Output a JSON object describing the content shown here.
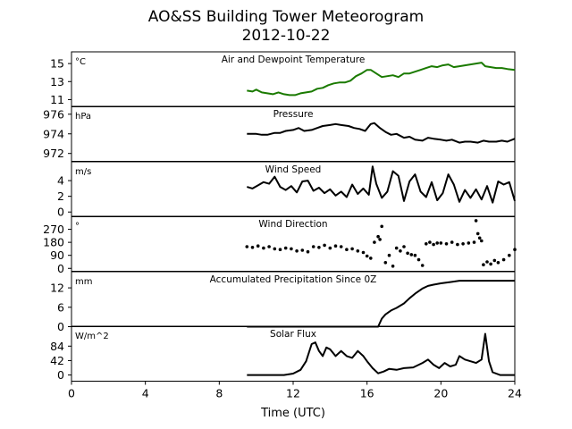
{
  "chart_data": {
    "type": "line",
    "title": "AO&SS Building Tower Meteorogram",
    "subtitle": "2012-10-22",
    "xlabel": "Time (UTC)",
    "xlim": [
      0,
      24
    ],
    "xticks": [
      "0",
      "4",
      "8",
      "12",
      "16",
      "20",
      "24"
    ],
    "grid": false,
    "panels": [
      {
        "name": "Air and Dewpoint Temperature",
        "unit": "°C",
        "ylim": [
          10.2,
          16.3
        ],
        "yticks": [
          11,
          13,
          15
        ],
        "ytick_labels": [
          "11",
          "13",
          "15"
        ],
        "color": "#1a7a00",
        "series": [
          {
            "x": [
              9.5,
              9.8,
              10.0,
              10.3,
              10.6,
              10.9,
              11.2,
              11.5,
              11.8,
              12.1,
              12.4,
              12.7,
              13.0,
              13.3,
              13.6,
              13.9,
              14.2,
              14.5,
              14.8,
              15.1,
              15.4,
              15.7,
              16.0,
              16.2,
              16.5,
              16.8,
              17.1,
              17.4,
              17.7,
              18.0,
              18.3,
              18.6,
              18.9,
              19.2,
              19.5,
              19.8,
              20.1,
              20.4,
              20.7,
              21.0,
              21.3,
              21.6,
              21.9,
              22.2,
              22.4,
              22.7,
              23.0,
              23.3,
              23.6,
              24.0
            ],
            "y": [
              12.0,
              11.9,
              12.1,
              11.8,
              11.7,
              11.6,
              11.8,
              11.6,
              11.5,
              11.5,
              11.7,
              11.8,
              11.9,
              12.2,
              12.3,
              12.6,
              12.8,
              12.9,
              12.9,
              13.1,
              13.6,
              13.9,
              14.3,
              14.3,
              13.9,
              13.5,
              13.6,
              13.7,
              13.5,
              13.9,
              13.9,
              14.1,
              14.3,
              14.5,
              14.7,
              14.6,
              14.8,
              14.9,
              14.6,
              14.7,
              14.8,
              14.9,
              15.0,
              15.1,
              14.7,
              14.6,
              14.5,
              14.5,
              14.4,
              14.3
            ]
          }
        ]
      },
      {
        "name": "Pressure",
        "unit": "hPa",
        "ylim": [
          971.2,
          976.8
        ],
        "yticks": [
          972,
          974,
          976
        ],
        "ytick_labels": [
          "972",
          "974",
          "976"
        ],
        "color": "#000000",
        "series": [
          {
            "x": [
              9.5,
              10.0,
              10.3,
              10.6,
              11.0,
              11.3,
              11.6,
              12.0,
              12.3,
              12.6,
              13.0,
              13.3,
              13.6,
              14.0,
              14.3,
              14.6,
              15.0,
              15.3,
              15.6,
              15.9,
              16.2,
              16.4,
              16.7,
              17.0,
              17.3,
              17.6,
              18.0,
              18.3,
              18.6,
              19.0,
              19.3,
              19.6,
              20.0,
              20.3,
              20.6,
              21.0,
              21.3,
              21.6,
              22.0,
              22.3,
              22.6,
              23.0,
              23.3,
              23.6,
              24.0
            ],
            "y": [
              974.0,
              974.0,
              973.9,
              973.9,
              974.1,
              974.1,
              974.3,
              974.4,
              974.6,
              974.3,
              974.4,
              974.6,
              974.8,
              974.9,
              975.0,
              974.9,
              974.8,
              974.6,
              974.5,
              974.3,
              975.0,
              975.1,
              974.6,
              974.2,
              973.9,
              974.0,
              973.6,
              973.7,
              973.4,
              973.3,
              973.6,
              973.5,
              973.4,
              973.3,
              973.4,
              973.1,
              973.2,
              973.2,
              973.1,
              973.3,
              973.2,
              973.2,
              973.3,
              973.2,
              973.5
            ]
          }
        ]
      },
      {
        "name": "Wind Speed",
        "unit": "m/s",
        "ylim": [
          -0.6,
          6.4
        ],
        "yticks": [
          0,
          2,
          4
        ],
        "ytick_labels": [
          "0",
          "2",
          "4"
        ],
        "color": "#000000",
        "series": [
          {
            "x": [
              9.5,
              9.8,
              10.1,
              10.4,
              10.7,
              11.0,
              11.3,
              11.6,
              11.9,
              12.2,
              12.5,
              12.8,
              13.1,
              13.4,
              13.7,
              14.0,
              14.3,
              14.6,
              14.9,
              15.2,
              15.5,
              15.8,
              16.1,
              16.3,
              16.5,
              16.8,
              17.1,
              17.4,
              17.7,
              18.0,
              18.3,
              18.6,
              18.9,
              19.2,
              19.5,
              19.8,
              20.1,
              20.4,
              20.7,
              21.0,
              21.3,
              21.6,
              21.9,
              22.2,
              22.5,
              22.8,
              23.1,
              23.4,
              23.7,
              24.0
            ],
            "y": [
              3.2,
              3.0,
              3.4,
              3.8,
              3.6,
              4.5,
              3.2,
              2.8,
              3.3,
              2.5,
              3.9,
              4.0,
              2.7,
              3.1,
              2.4,
              2.9,
              2.1,
              2.6,
              1.9,
              3.5,
              2.3,
              3.0,
              2.2,
              5.8,
              3.6,
              1.8,
              2.6,
              5.2,
              4.6,
              1.4,
              3.9,
              4.8,
              2.6,
              1.9,
              3.8,
              1.5,
              2.4,
              4.8,
              3.5,
              1.3,
              2.8,
              1.8,
              2.9,
              1.6,
              3.3,
              1.2,
              3.9,
              3.5,
              3.8,
              1.4
            ]
          }
        ]
      },
      {
        "name": "Wind Direction",
        "unit": "°",
        "ylim": [
          -20,
          360
        ],
        "yticks": [
          0,
          90,
          180,
          270
        ],
        "ytick_labels": [
          "0",
          "90",
          "180",
          "270"
        ],
        "color": "#000000",
        "style": "scatter",
        "series": [
          {
            "x": [
              9.5,
              9.8,
              10.1,
              10.4,
              10.7,
              11.0,
              11.3,
              11.6,
              11.9,
              12.2,
              12.5,
              12.8,
              13.1,
              13.4,
              13.7,
              14.0,
              14.3,
              14.6,
              14.9,
              15.2,
              15.5,
              15.8,
              16.0,
              16.2,
              16.4,
              16.6,
              16.7,
              16.8,
              17.0,
              17.2,
              17.4,
              17.6,
              17.8,
              18.0,
              18.2,
              18.4,
              18.6,
              18.8,
              19.0,
              19.2,
              19.4,
              19.6,
              19.8,
              20.0,
              20.3,
              20.6,
              20.9,
              21.2,
              21.5,
              21.8,
              21.9,
              22.0,
              22.1,
              22.2,
              22.3,
              22.5,
              22.7,
              22.9,
              23.1,
              23.4,
              23.7,
              24.0
            ],
            "y": [
              150,
              145,
              155,
              140,
              150,
              135,
              130,
              140,
              135,
              120,
              125,
              115,
              150,
              145,
              160,
              140,
              155,
              150,
              130,
              135,
              120,
              110,
              85,
              70,
              180,
              220,
              200,
              290,
              40,
              90,
              15,
              140,
              120,
              150,
              105,
              95,
              90,
              60,
              20,
              170,
              180,
              165,
              175,
              175,
              170,
              180,
              165,
              170,
              175,
              180,
              330,
              240,
              210,
              190,
              25,
              45,
              30,
              55,
              40,
              60,
              90,
              130
            ]
          }
        ]
      },
      {
        "name": "Accumulated Precipitation Since 0Z",
        "unit": "mm",
        "ylim": [
          0,
          17
        ],
        "yticks": [
          0,
          6,
          12
        ],
        "ytick_labels": [
          "0",
          "6",
          "12"
        ],
        "color": "#000000",
        "series": [
          {
            "x": [
              9.5,
              12.0,
              14.0,
              16.0,
              16.6,
              16.8,
              17.0,
              17.3,
              17.6,
              18.0,
              18.3,
              18.6,
              19.0,
              19.3,
              19.6,
              20.0,
              20.5,
              21.0,
              22.0,
              23.0,
              24.0
            ],
            "y": [
              0,
              0,
              0,
              0,
              0,
              2.5,
              3.8,
              5.0,
              5.8,
              7.2,
              8.8,
              10.2,
              11.8,
              12.6,
              13.0,
              13.4,
              13.8,
              14.2,
              14.2,
              14.2,
              14.2
            ]
          }
        ]
      },
      {
        "name": "Solar Flux",
        "unit": "W/m^2",
        "ylim": [
          -18,
          142
        ],
        "yticks": [
          0,
          42,
          84
        ],
        "ytick_labels": [
          "0",
          "42",
          "84"
        ],
        "color": "#000000",
        "series": [
          {
            "x": [
              9.5,
              10.5,
              11.5,
              12.0,
              12.4,
              12.7,
              13.0,
              13.2,
              13.4,
              13.6,
              13.8,
              14.0,
              14.3,
              14.6,
              14.9,
              15.2,
              15.5,
              15.8,
              16.0,
              16.3,
              16.6,
              16.9,
              17.2,
              17.6,
              18.0,
              18.5,
              19.0,
              19.3,
              19.6,
              19.9,
              20.2,
              20.5,
              20.8,
              21.0,
              21.3,
              21.6,
              21.9,
              22.2,
              22.4,
              22.6,
              22.8,
              23.2,
              23.6,
              24.0
            ],
            "y": [
              0,
              0,
              0,
              4,
              15,
              40,
              90,
              95,
              70,
              55,
              80,
              75,
              55,
              70,
              55,
              50,
              70,
              55,
              40,
              20,
              5,
              10,
              18,
              15,
              20,
              22,
              35,
              45,
              30,
              20,
              35,
              25,
              30,
              55,
              45,
              40,
              35,
              45,
              120,
              40,
              8,
              0,
              0,
              0
            ]
          }
        ]
      }
    ]
  }
}
